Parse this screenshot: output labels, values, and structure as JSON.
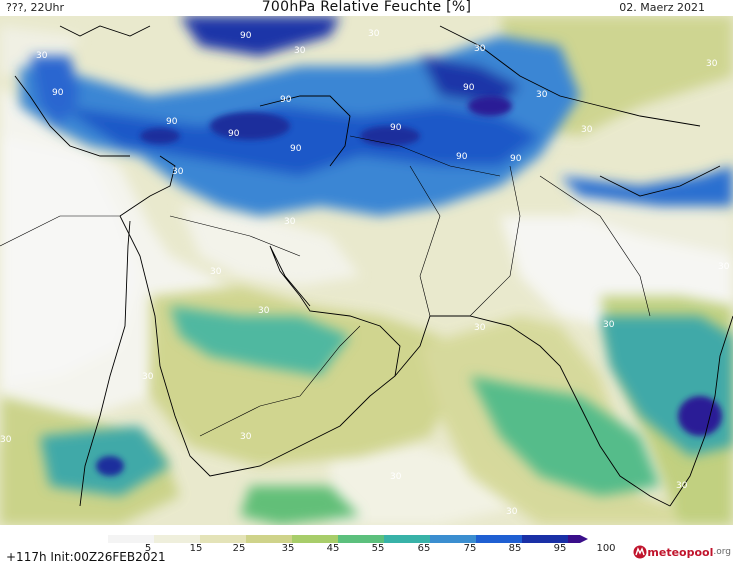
{
  "header": {
    "left": "???, 22Uhr",
    "title": "700hPa Relative Feuchte [%]",
    "right": "02. Maerz 2021"
  },
  "footer": {
    "run_info": "+117h Init:00Z26FEB2021",
    "logo_main": "meteopool",
    "logo_suffix": ".org"
  },
  "legend": {
    "ticks": [
      "5",
      "15",
      "25",
      "35",
      "45",
      "55",
      "65",
      "75",
      "85",
      "95",
      "100"
    ],
    "colors": [
      "#f4f4f4",
      "#efefdc",
      "#e4e3b8",
      "#cfd38a",
      "#a8cd6a",
      "#5cc07d",
      "#38b2a8",
      "#3b8ed0",
      "#1f5fd2",
      "#1a30a6",
      "#3a0f8a"
    ]
  },
  "map": {
    "contour_label": "90",
    "contour_label_30": "30",
    "colors": {
      "ocean": "#ecedd3",
      "coast": "#000000"
    }
  }
}
